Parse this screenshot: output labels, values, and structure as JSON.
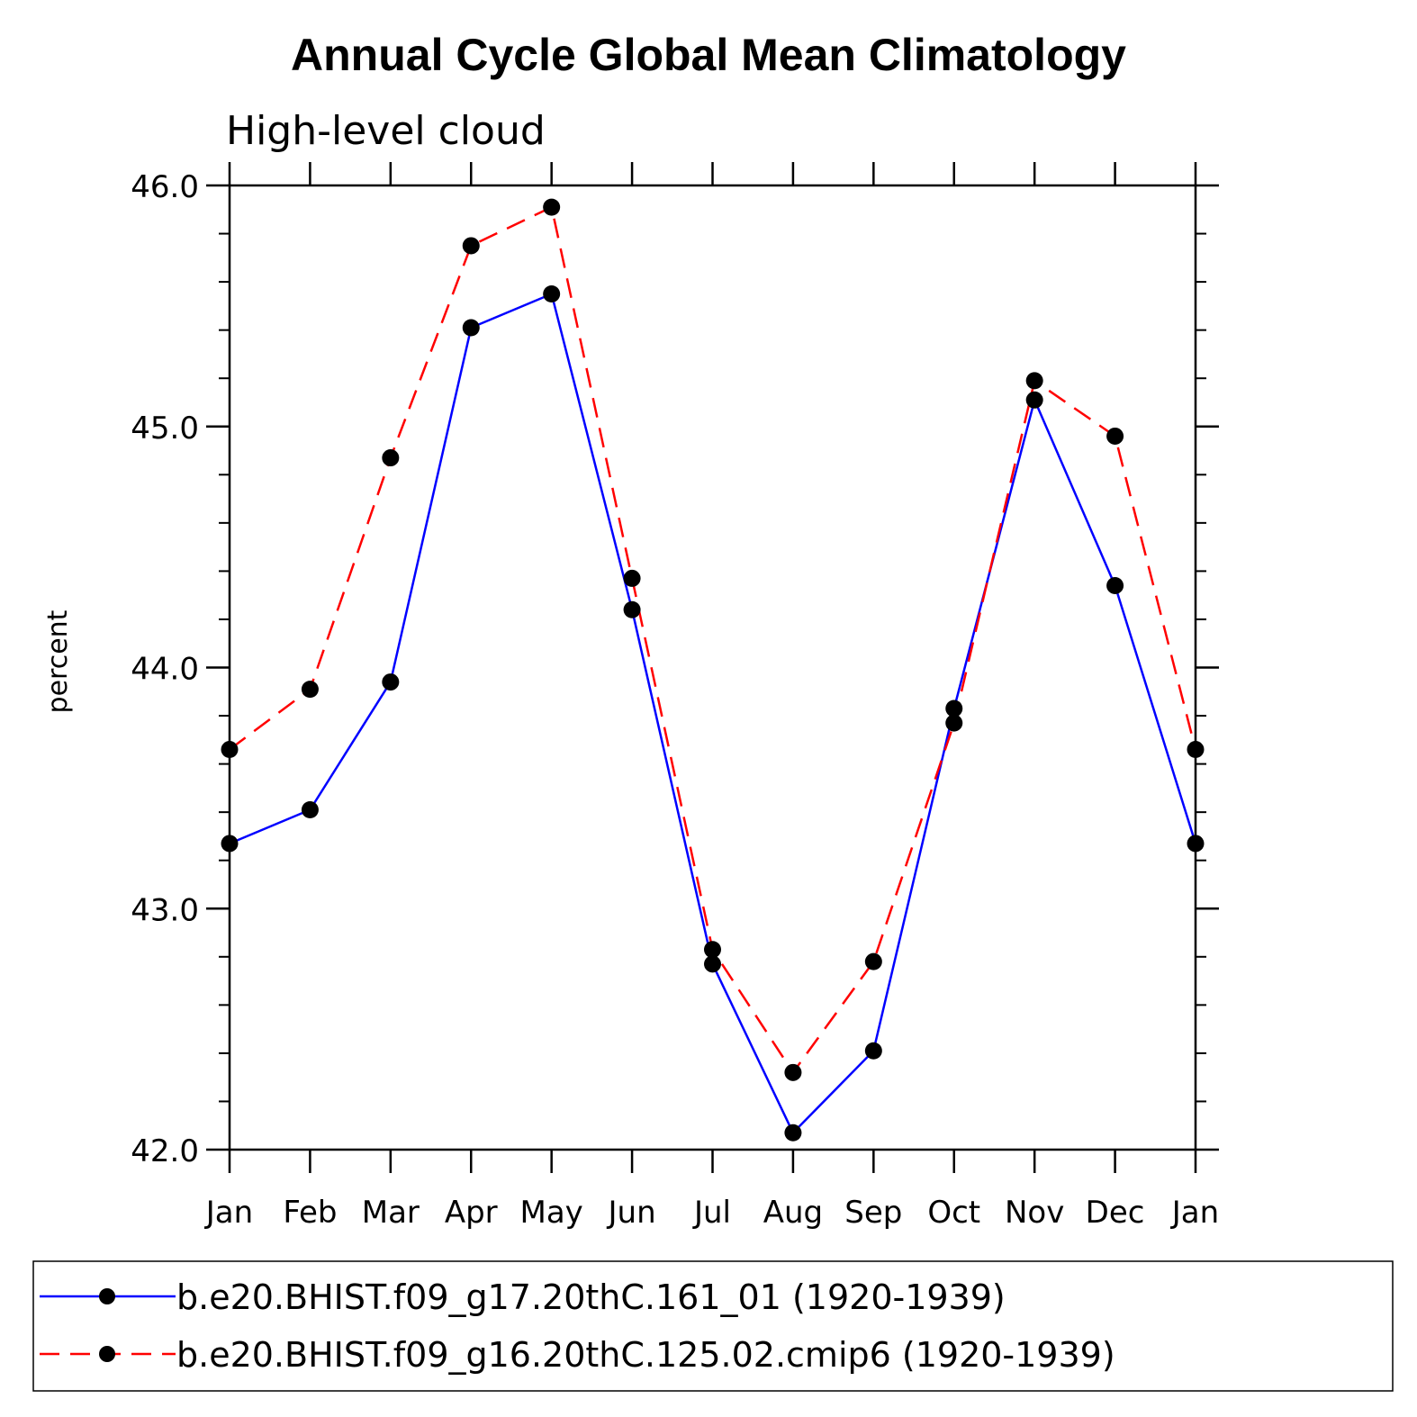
{
  "chart_data": {
    "type": "line",
    "title": "Annual Cycle Global Mean Climatology",
    "subtitle": "High-level cloud",
    "xlabel": "",
    "ylabel": "percent",
    "ylim": [
      42.0,
      46.0
    ],
    "yticks": [
      "42.0",
      "43.0",
      "44.0",
      "45.0",
      "46.0"
    ],
    "ytick_values": [
      42.0,
      43.0,
      44.0,
      45.0,
      46.0
    ],
    "categories": [
      "Jan",
      "Feb",
      "Mar",
      "Apr",
      "May",
      "Jun",
      "Jul",
      "Aug",
      "Sep",
      "Oct",
      "Nov",
      "Dec",
      "Jan"
    ],
    "grid": false,
    "legend_position": "bottom",
    "series": [
      {
        "name": "b.e20.BHIST.f09_g17.20thC.161_01 (1920-1939)",
        "color": "#0000ff",
        "dash": "solid",
        "values": [
          43.27,
          43.41,
          43.94,
          45.41,
          45.55,
          44.24,
          42.77,
          42.07,
          42.41,
          43.83,
          45.11,
          44.34,
          43.27
        ]
      },
      {
        "name": "b.e20.BHIST.f09_g16.20thC.125.02.cmip6 (1920-1939)",
        "color": "#ff0000",
        "dash": "dashed",
        "values": [
          43.66,
          43.91,
          44.87,
          45.75,
          45.91,
          44.37,
          42.83,
          42.32,
          42.78,
          43.77,
          45.19,
          44.96,
          43.66
        ]
      }
    ]
  }
}
